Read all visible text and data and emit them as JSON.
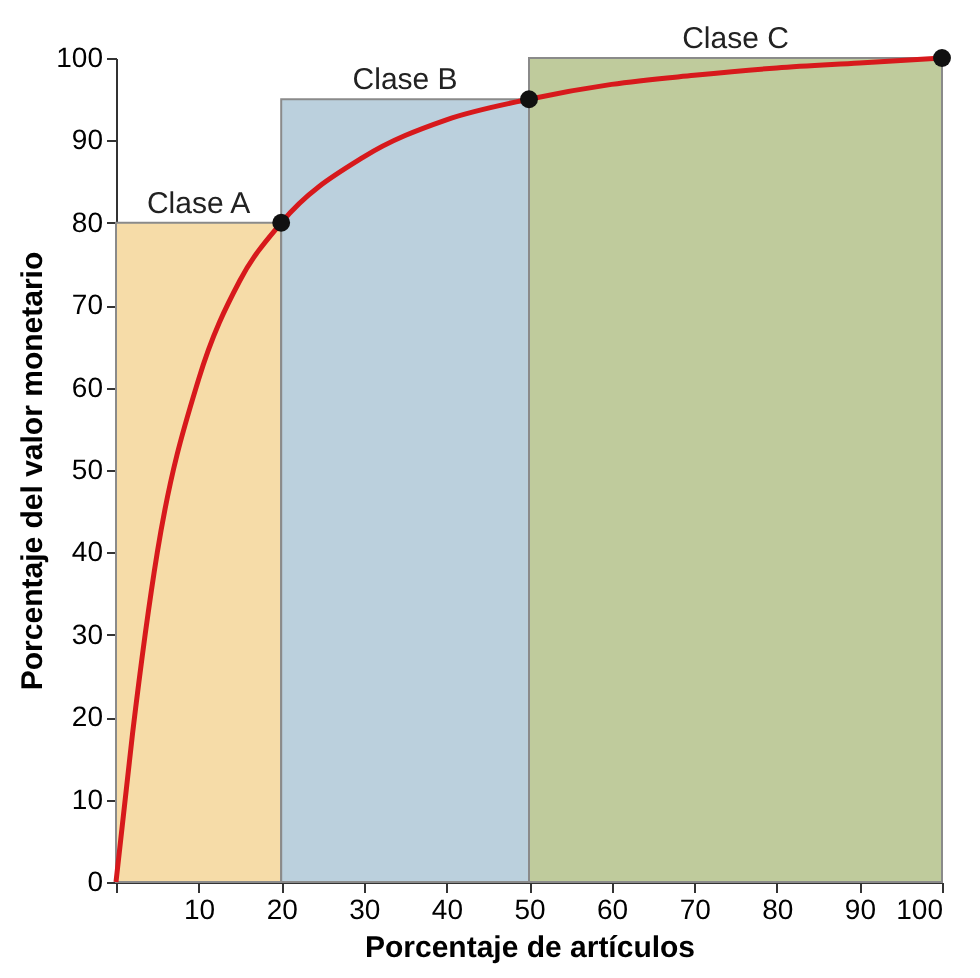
{
  "chart_data": {
    "type": "line",
    "xlabel": "Porcentaje de artículos",
    "ylabel": "Porcentaje del valor monetario",
    "xlim": [
      0,
      100
    ],
    "ylim": [
      0,
      100
    ],
    "xticks": [
      {
        "value": 0,
        "label": null
      },
      10,
      20,
      30,
      40,
      50,
      60,
      70,
      80,
      90,
      100
    ],
    "yticks": [
      0,
      10,
      20,
      30,
      40,
      50,
      60,
      70,
      80,
      90,
      100
    ],
    "grid": false,
    "series": [
      {
        "name": "Clase A",
        "type": "area",
        "color": "#f6dca8",
        "x": [
          0,
          20
        ],
        "values": [
          80,
          80
        ]
      },
      {
        "name": "Clase B",
        "type": "area",
        "color": "#bbd0dd",
        "x": [
          20,
          50
        ],
        "values": [
          95,
          95
        ]
      },
      {
        "name": "Clase C",
        "type": "area",
        "color": "#bfcb9c",
        "x": [
          50,
          100
        ],
        "values": [
          100,
          100
        ]
      },
      {
        "color": "#d7191c",
        "x": [
          0,
          2,
          5,
          10,
          15,
          20,
          30,
          40,
          50,
          60,
          70,
          80,
          90,
          100
        ],
        "values": [
          0,
          18,
          40,
          61,
          73,
          80,
          88,
          92.5,
          95,
          96.8,
          97.9,
          98.8,
          99.4,
          100
        ]
      },
      {
        "type": "scatter",
        "color": "#111111",
        "marker": "circle",
        "x": [
          20,
          50,
          100
        ],
        "values": [
          80,
          95,
          100
        ]
      }
    ]
  }
}
